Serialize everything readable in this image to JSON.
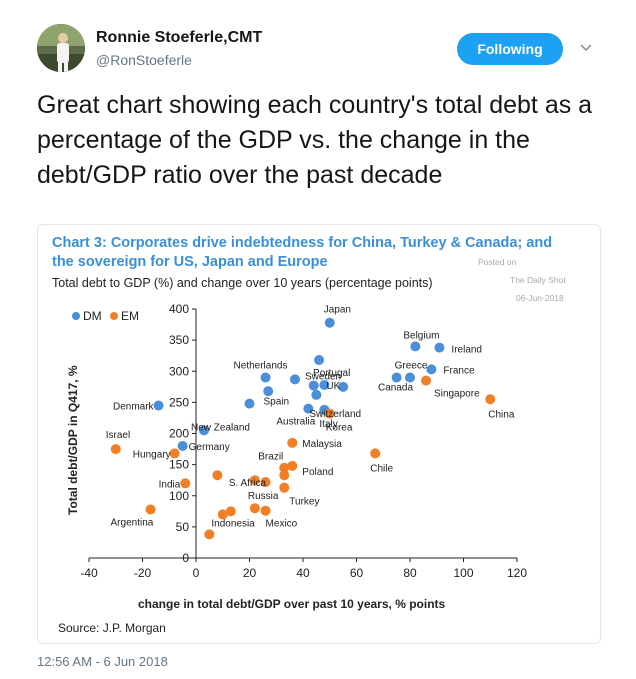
{
  "tweet": {
    "author_name": "Ronnie Stoeferle,CMT",
    "author_handle": "@RonStoeferle",
    "follow_label": "Following",
    "text": "Great chart showing each country's total debt as a percentage of the GDP vs. the change in the debt/GDP ratio over the past decade",
    "timestamp": "12:56 AM - 6 Jun 2018"
  },
  "colors": {
    "dm": "#4a8fd8",
    "em": "#f07f26",
    "title": "#3a8fd6",
    "button": "#1da1f2"
  },
  "icons": {
    "menu": "chevron-down-icon"
  },
  "chart_data": {
    "type": "scatter",
    "title_line1": "Chart 3: Corporates drive indebtedness for China, Turkey & Canada; and",
    "title_line2": "the sovereign for US, Japan and Europe",
    "subtitle": "Total debt to GDP (%) and change over 10 years (percentage points)",
    "watermark": [
      "Posted on",
      "The Daily Shot",
      "06-Jun-2018"
    ],
    "xlabel": "change in total debt/GDP over past 10 years, % points",
    "ylabel": "Total debt/GDP in Q417, %",
    "source": "Source: J.P. Morgan",
    "xlim": [
      -40,
      120
    ],
    "ylim": [
      0,
      400
    ],
    "xticks": [
      "-40",
      "-20",
      "0",
      "20",
      "40",
      "60",
      "80",
      "100",
      "120"
    ],
    "yticks": [
      "0",
      "50",
      "100",
      "150",
      "200",
      "250",
      "300",
      "350",
      "400"
    ],
    "legend": [
      {
        "name": "DM",
        "group": "dm"
      },
      {
        "name": "EM",
        "group": "em"
      }
    ],
    "series": [
      {
        "name": "DM",
        "points": [
          {
            "x": 50,
            "y": 378,
            "label": "Japan"
          },
          {
            "x": 82,
            "y": 340,
            "label": "Belgium"
          },
          {
            "x": 91,
            "y": 338,
            "label": "Ireland"
          },
          {
            "x": 46,
            "y": 318,
            "label": "Portugal"
          },
          {
            "x": 26,
            "y": 290,
            "label": "Netherlands"
          },
          {
            "x": 37,
            "y": 287,
            "label": "Sweden"
          },
          {
            "x": 75,
            "y": 290,
            "label": "Greece"
          },
          {
            "x": 88,
            "y": 303,
            "label": "France"
          },
          {
            "x": 44,
            "y": 277,
            "label": ""
          },
          {
            "x": 48,
            "y": 278,
            "label": "UK"
          },
          {
            "x": 55,
            "y": 275,
            "label": ""
          },
          {
            "x": 27,
            "y": 268,
            "label": ""
          },
          {
            "x": 80,
            "y": 290,
            "label": "Canada"
          },
          {
            "x": 45,
            "y": 262,
            "label": "Switzerland"
          },
          {
            "x": 20,
            "y": 248,
            "label": "Spain"
          },
          {
            "x": -14,
            "y": 245,
            "label": "Denmark"
          },
          {
            "x": 42,
            "y": 240,
            "label": "Australia"
          },
          {
            "x": 48,
            "y": 238,
            "label": "Italy"
          },
          {
            "x": 3,
            "y": 205,
            "label": "New Zealand"
          },
          {
            "x": -5,
            "y": 180,
            "label": "Germany"
          }
        ]
      },
      {
        "name": "EM",
        "points": [
          {
            "x": 86,
            "y": 285,
            "label": "Singapore"
          },
          {
            "x": 110,
            "y": 255,
            "label": "China"
          },
          {
            "x": 50,
            "y": 232,
            "label": "Korea"
          },
          {
            "x": 36,
            "y": 185,
            "label": "Malaysia"
          },
          {
            "x": 67,
            "y": 168,
            "label": "Chile"
          },
          {
            "x": -30,
            "y": 175,
            "label": "Israel"
          },
          {
            "x": -8,
            "y": 168,
            "label": "Hungary"
          },
          {
            "x": 33,
            "y": 145,
            "label": "Brazil"
          },
          {
            "x": 36,
            "y": 148,
            "label": "Poland"
          },
          {
            "x": 33,
            "y": 133,
            "label": ""
          },
          {
            "x": 8,
            "y": 133,
            "label": ""
          },
          {
            "x": 22,
            "y": 125,
            "label": "S. Africa"
          },
          {
            "x": 26,
            "y": 122,
            "label": ""
          },
          {
            "x": 33,
            "y": 113,
            "label": "Turkey"
          },
          {
            "x": -4,
            "y": 120,
            "label": "India"
          },
          {
            "x": 13,
            "y": 75,
            "label": ""
          },
          {
            "x": 22,
            "y": 80,
            "label": "Russia"
          },
          {
            "x": 26,
            "y": 76,
            "label": "Mexico"
          },
          {
            "x": -17,
            "y": 78,
            "label": "Argentina"
          },
          {
            "x": 10,
            "y": 70,
            "label": ""
          },
          {
            "x": 5,
            "y": 38,
            "label": "Indonesia"
          }
        ]
      }
    ]
  }
}
